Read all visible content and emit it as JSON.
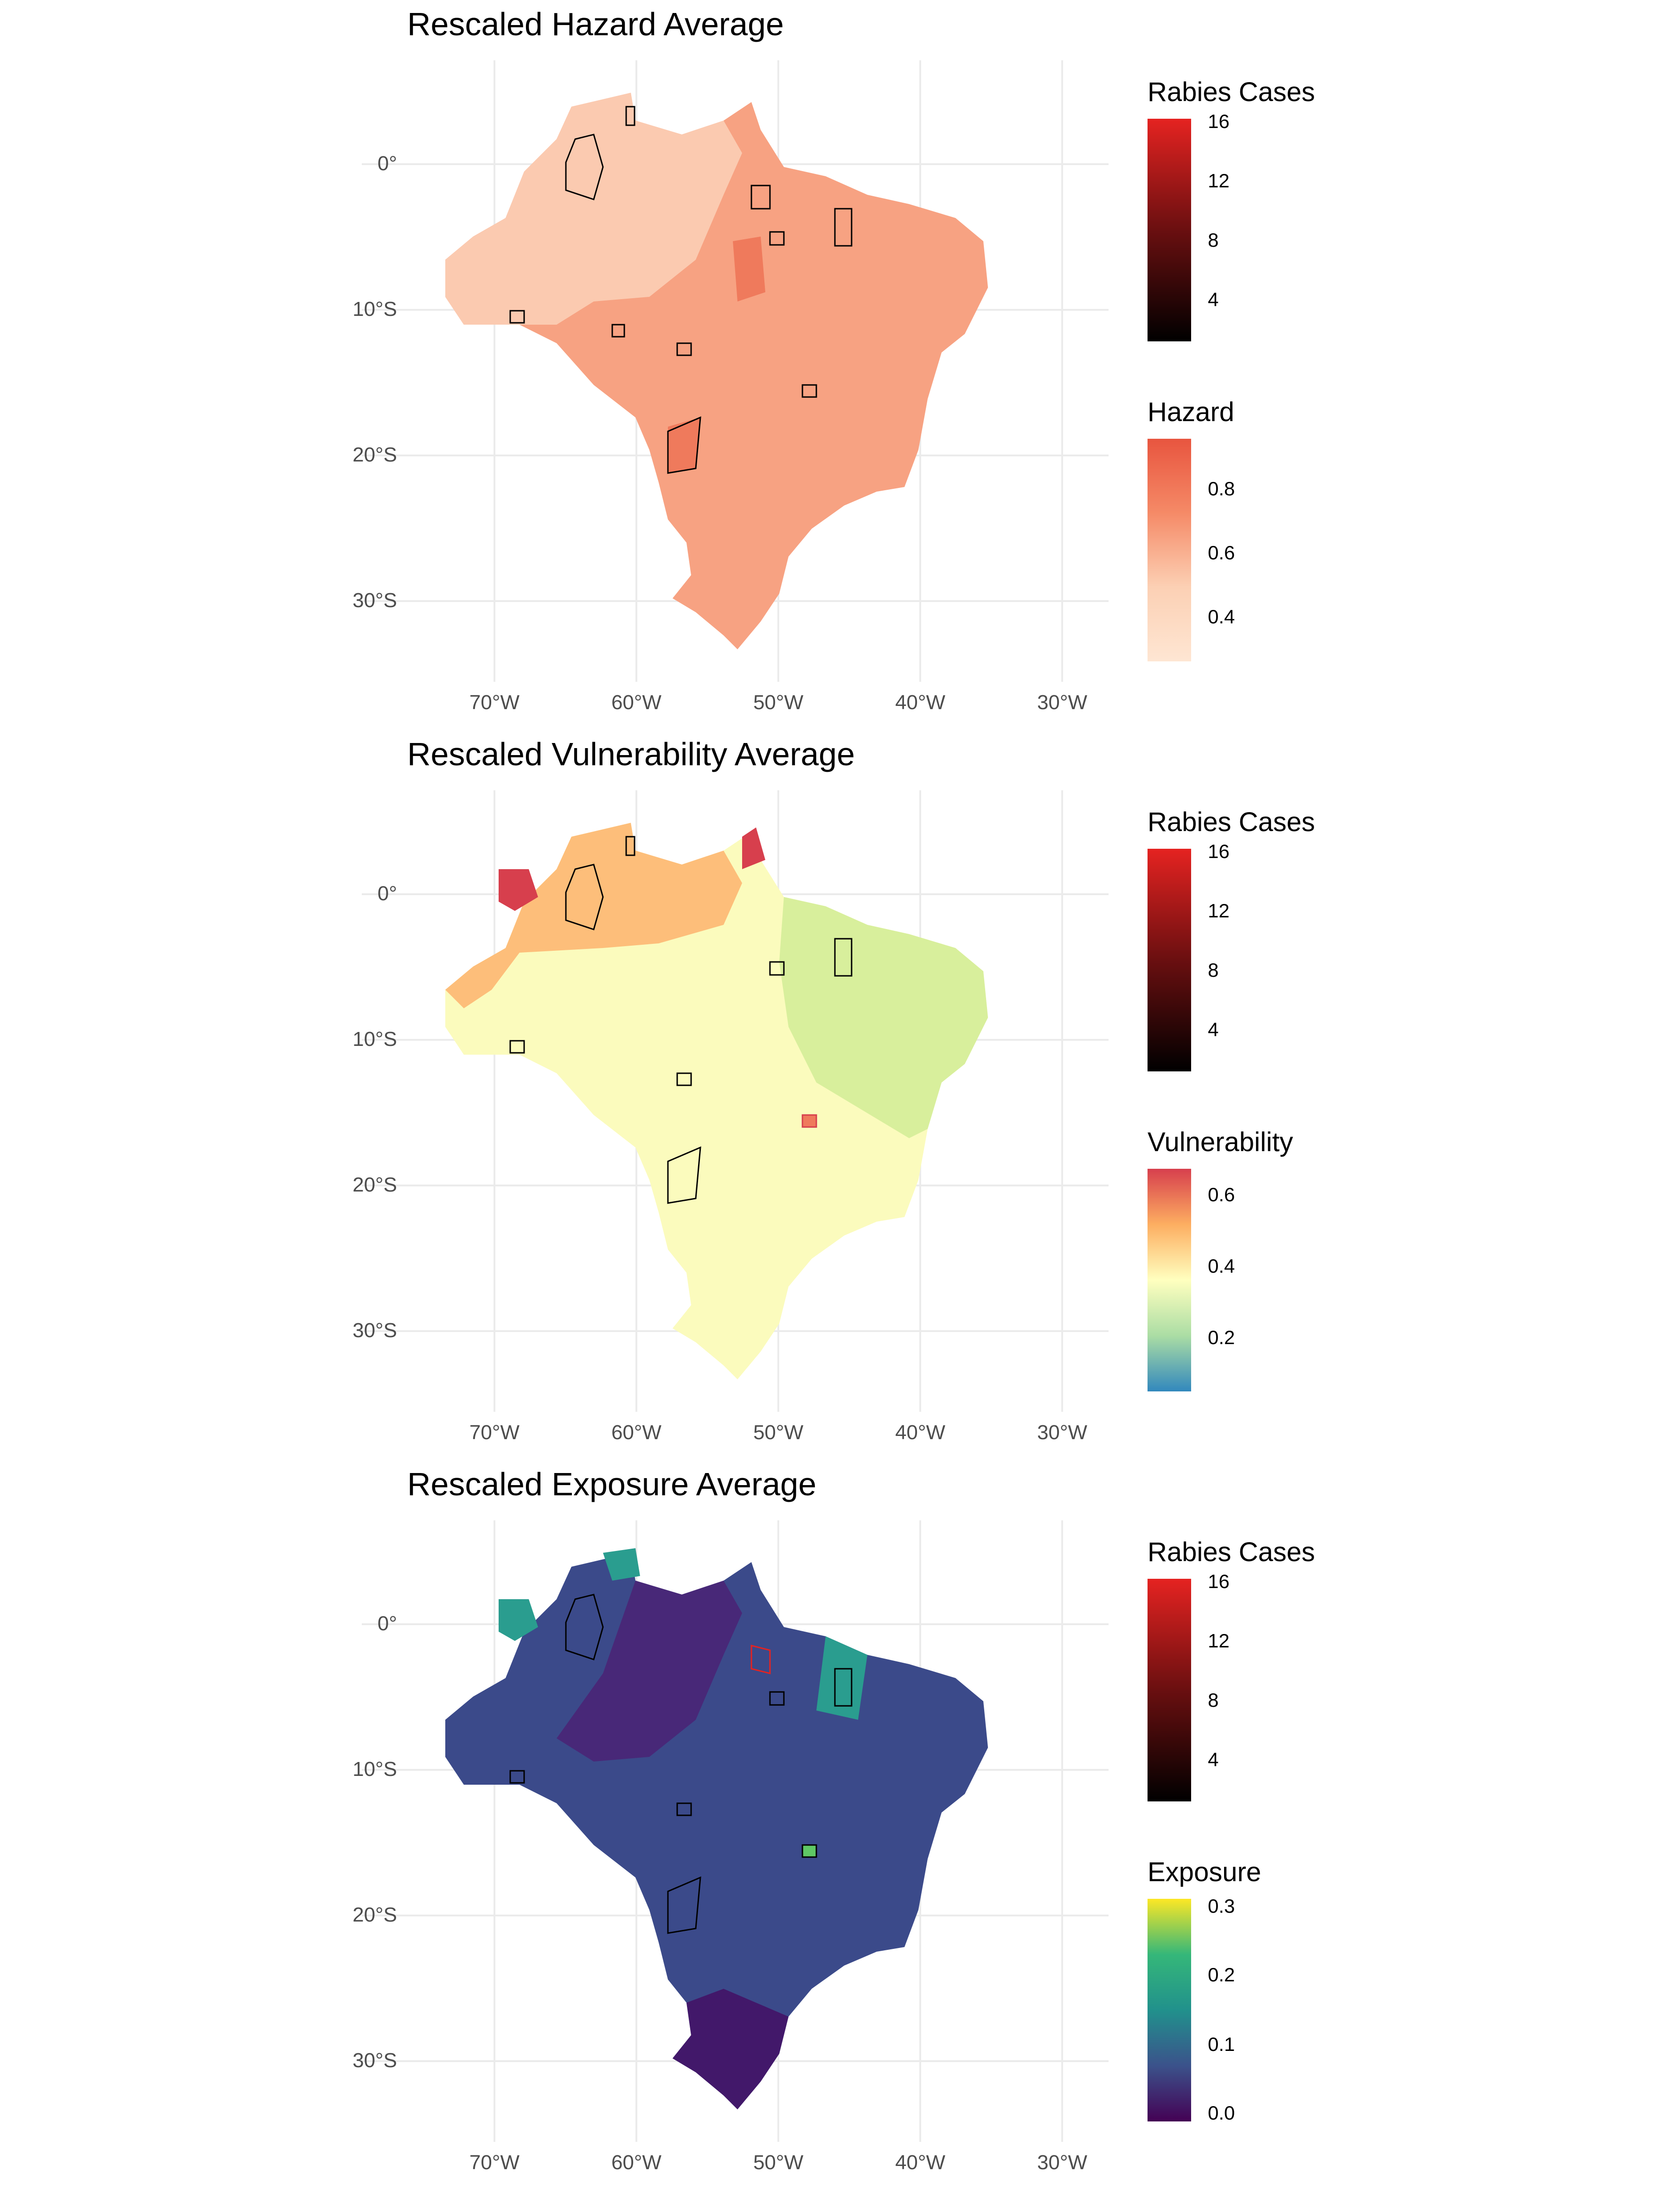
{
  "axes": {
    "y_ticks": [
      "0°",
      "10°S",
      "20°S",
      "30°S"
    ],
    "x_ticks": [
      "70°W",
      "60°W",
      "50°W",
      "40°W",
      "30°W"
    ]
  },
  "panels": [
    {
      "title": "Rescaled Hazard Average",
      "fill_legend": {
        "title": "Hazard",
        "labels": [
          "0.8",
          "0.6",
          "0.4"
        ],
        "colors": [
          "#e8553f",
          "#f58a67",
          "#fcd0b4",
          "#fee6d3"
        ]
      },
      "cases_legend": {
        "title": "Rabies Cases",
        "labels": [
          "16",
          "12",
          "8",
          "4"
        ],
        "colors": [
          "#e52321",
          "#6a0f10",
          "#000000"
        ]
      },
      "map_colors": {
        "base": "#f7a282",
        "north": "#fbcab0",
        "accent": "#ef7a5c"
      }
    },
    {
      "title": "Rescaled Vulnerability Average",
      "fill_legend": {
        "title": "Vulnerability",
        "labels": [
          "0.6",
          "0.4",
          "0.2"
        ],
        "colors": [
          "#d73f4d",
          "#fdae61",
          "#ffffbf",
          "#abdda4",
          "#3288bd"
        ]
      },
      "cases_legend": {
        "title": "Rabies Cases",
        "labels": [
          "16",
          "12",
          "8",
          "4"
        ],
        "colors": [
          "#e52321",
          "#6a0f10",
          "#000000"
        ]
      },
      "map_colors": {
        "base": "#fbfbbd",
        "north": "#fdbe7a",
        "accent": "#d73f4d",
        "east": "#d8ef9c"
      }
    },
    {
      "title": "Rescaled Exposure Average",
      "fill_legend": {
        "title": "Exposure",
        "labels": [
          "0.3",
          "0.2",
          "0.1",
          "0.0"
        ],
        "colors": [
          "#fde725",
          "#35b779",
          "#21918c",
          "#3b528b",
          "#440154"
        ]
      },
      "cases_legend": {
        "title": "Rabies Cases",
        "labels": [
          "16",
          "12",
          "8",
          "4"
        ],
        "colors": [
          "#e52321",
          "#6a0f10",
          "#000000"
        ]
      },
      "map_colors": {
        "base": "#3b4a8a",
        "north": "#482878",
        "accent": "#2a9d8f",
        "south": "#42186a"
      }
    }
  ]
}
